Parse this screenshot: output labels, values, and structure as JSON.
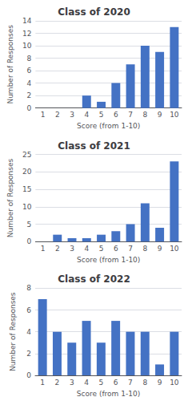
{
  "chart_data": [
    {
      "type": "bar",
      "title": "Class of 2020",
      "categories": [
        "1",
        "2",
        "3",
        "4",
        "5",
        "6",
        "7",
        "8",
        "9",
        "10"
      ],
      "values": [
        0,
        0,
        0,
        2,
        1,
        4,
        7,
        10,
        9,
        13
      ],
      "color": "#4472C4",
      "xlabel": "Score (from 1-10)",
      "ylabel": "Number of Responses",
      "ylim": [
        0,
        14
      ],
      "yticks": [
        0,
        2,
        4,
        6,
        8,
        10,
        12,
        14
      ],
      "grid": true
    },
    {
      "type": "bar",
      "title": "Class of 2021",
      "categories": [
        "1",
        "2",
        "3",
        "4",
        "5",
        "6",
        "7",
        "8",
        "9",
        "10"
      ],
      "values": [
        0,
        2,
        1,
        1,
        2,
        3,
        5,
        11,
        4,
        23
      ],
      "color": "#4472C4",
      "xlabel": "Score (from 1-10)",
      "ylabel": "Number of Responses",
      "ylim": [
        0,
        25
      ],
      "yticks": [
        0,
        5,
        10,
        15,
        20,
        25
      ],
      "grid": true
    },
    {
      "type": "bar",
      "title": "Class of 2022",
      "categories": [
        "1",
        "2",
        "3",
        "4",
        "5",
        "6",
        "7",
        "8",
        "9",
        "10"
      ],
      "values": [
        7,
        4,
        3,
        5,
        3,
        5,
        4,
        4,
        1,
        4
      ],
      "color": "#4472C4",
      "xlabel": "Score (from 1-10)",
      "ylabel": "Number of Responses",
      "ylim": [
        0,
        8
      ],
      "yticks": [
        0,
        2,
        4,
        6,
        8
      ],
      "grid": true
    }
  ]
}
